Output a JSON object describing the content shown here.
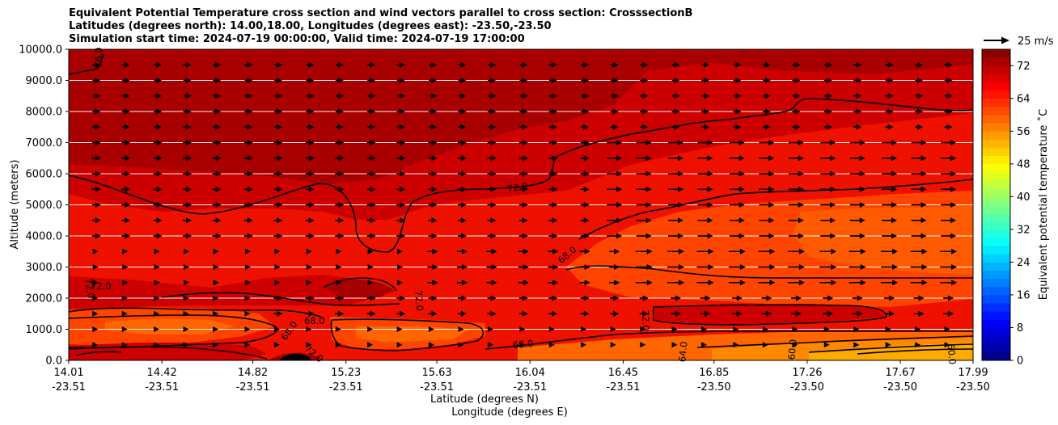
{
  "chart_data": {
    "type": "heatmap",
    "subtype": "filled-contour cross section with wind vectors",
    "title_lines": [
      "Equivalent Potential Temperature cross section and wind vectors parallel to cross section: CrosssectionB",
      "Latitudes (degrees north): 14.00,18.00, Longitudes (degrees east): -23.50,-23.50",
      "Simulation start time: 2024-07-19 00:00:00, Valid time: 2024-07-19 17:00:00"
    ],
    "ylabel": "Altitude (meters)",
    "xlabel": "Latitude (degrees N)",
    "xlabel2": "Longitude (degrees E)",
    "ylim": [
      0,
      10000
    ],
    "yticks": [
      "0.0",
      "1000.0",
      "2000.0",
      "3000.0",
      "4000.0",
      "5000.0",
      "6000.0",
      "7000.0",
      "8000.0",
      "9000.0",
      "10000.0"
    ],
    "ytick_values": [
      0,
      1000,
      2000,
      3000,
      4000,
      5000,
      6000,
      7000,
      8000,
      9000,
      10000
    ],
    "grid": true,
    "xticks": [
      {
        "lat": "14.01",
        "lon": "-23.51"
      },
      {
        "lat": "14.42",
        "lon": "-23.51"
      },
      {
        "lat": "14.82",
        "lon": "-23.51"
      },
      {
        "lat": "15.23",
        "lon": "-23.51"
      },
      {
        "lat": "15.63",
        "lon": "-23.51"
      },
      {
        "lat": "16.04",
        "lon": "-23.51"
      },
      {
        "lat": "16.45",
        "lon": "-23.51"
      },
      {
        "lat": "16.85",
        "lon": "-23.50"
      },
      {
        "lat": "17.26",
        "lon": "-23.50"
      },
      {
        "lat": "17.67",
        "lon": "-23.50"
      },
      {
        "lat": "17.99",
        "lon": "-23.50"
      }
    ],
    "colorbar": {
      "label": "Equivalent potential temperature ˚C",
      "range": [
        0,
        76
      ],
      "step": 2,
      "ticks": [
        "0",
        "8",
        "16",
        "24",
        "32",
        "40",
        "48",
        "56",
        "64",
        "72"
      ],
      "tick_values": [
        0,
        8,
        16,
        24,
        32,
        40,
        48,
        56,
        64,
        72
      ]
    },
    "quiver_key": {
      "label": "25 m/s",
      "speed": 25
    },
    "contour_labels": [
      "76.0",
      "72.0",
      "72.0",
      "72.0",
      "72.0",
      "72.0",
      "72.0",
      "68.0",
      "68.0",
      "68.0",
      "68.0",
      "64.0",
      "60.0",
      "60.0"
    ],
    "wind_rows_altitude_m": [
      9500,
      9000,
      8500,
      8000,
      7500,
      7000,
      6500,
      6000,
      5500,
      5000,
      4500,
      4000,
      3500,
      3000,
      2500,
      2000,
      1500,
      1000,
      500
    ],
    "wind_cols_latitude": [
      14.13,
      14.26,
      14.4,
      14.53,
      14.66,
      14.8,
      14.93,
      15.07,
      15.2,
      15.34,
      15.47,
      15.61,
      15.74,
      15.87,
      16.01,
      16.14,
      16.28,
      16.41,
      16.54,
      16.68,
      16.81,
      16.95,
      17.08,
      17.21,
      17.35,
      17.48,
      17.62,
      17.75,
      17.88
    ]
  }
}
